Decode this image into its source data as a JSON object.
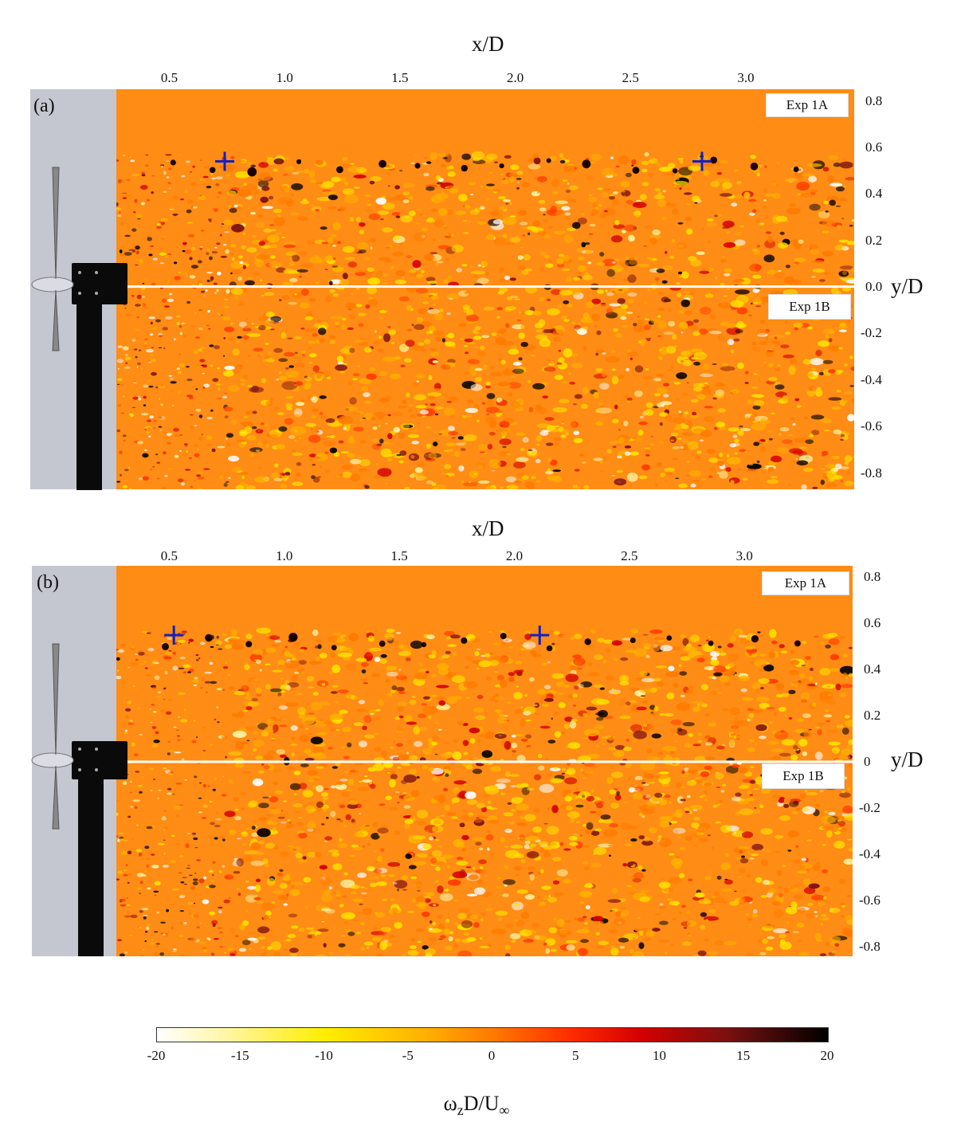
{
  "chart_data": [
    {
      "type": "heatmap",
      "panel": "(a)",
      "xlabel": "x/D",
      "ylabel": "y/D",
      "xticks": [
        "0.5",
        "1.0",
        "1.5",
        "2.0",
        "2.5",
        "3.0"
      ],
      "xtick_values": [
        0.5,
        1.0,
        1.5,
        2.0,
        2.5,
        3.0
      ],
      "yticks": [
        "0.8",
        "0.6",
        "0.4",
        "0.2",
        "0.0",
        "-0.2",
        "-0.4",
        "-0.6",
        "-0.8"
      ],
      "ytick_values": [
        0.8,
        0.6,
        0.4,
        0.2,
        0.0,
        -0.2,
        -0.4,
        -0.6,
        -0.8
      ],
      "xlim": [
        0.27,
        3.47
      ],
      "ylim": [
        -0.87,
        0.85
      ],
      "labels": [
        "Exp 1A",
        "Exp 1B"
      ],
      "markers": [
        {
          "x": 0.74,
          "y": 0.54
        },
        {
          "x": 2.81,
          "y": 0.54
        }
      ]
    },
    {
      "type": "heatmap",
      "panel": "(b)",
      "xlabel": "x/D",
      "ylabel": "y/D",
      "xticks": [
        "0.5",
        "1.0",
        "1.5",
        "2.0",
        "2.5",
        "3.0"
      ],
      "xtick_values": [
        0.5,
        1.0,
        1.5,
        2.0,
        2.5,
        3.0
      ],
      "yticks": [
        "0.8",
        "0.6",
        "0.4",
        "0.2",
        "0",
        "-0.2",
        "-0.4",
        "-0.6",
        "-0.8"
      ],
      "ytick_values": [
        0.8,
        0.6,
        0.4,
        0.2,
        0.0,
        -0.2,
        -0.4,
        -0.6,
        -0.8
      ],
      "xlim": [
        0.27,
        3.47
      ],
      "ylim": [
        -0.84,
        0.85
      ],
      "labels": [
        "Exp 1A",
        "Exp 1B"
      ],
      "markers": [
        {
          "x": 0.52,
          "y": 0.55
        },
        {
          "x": 2.11,
          "y": 0.55
        }
      ]
    }
  ],
  "colorbar": {
    "ticks": [
      "-20",
      "-15",
      "-10",
      "-5",
      "0",
      "5",
      "10",
      "15",
      "20"
    ],
    "range": [
      -20,
      20
    ],
    "label": "ω_zD/U_∞",
    "colors": [
      "#ffffff",
      "#ffee00",
      "#ff7a00",
      "#d40000",
      "#000000"
    ]
  }
}
